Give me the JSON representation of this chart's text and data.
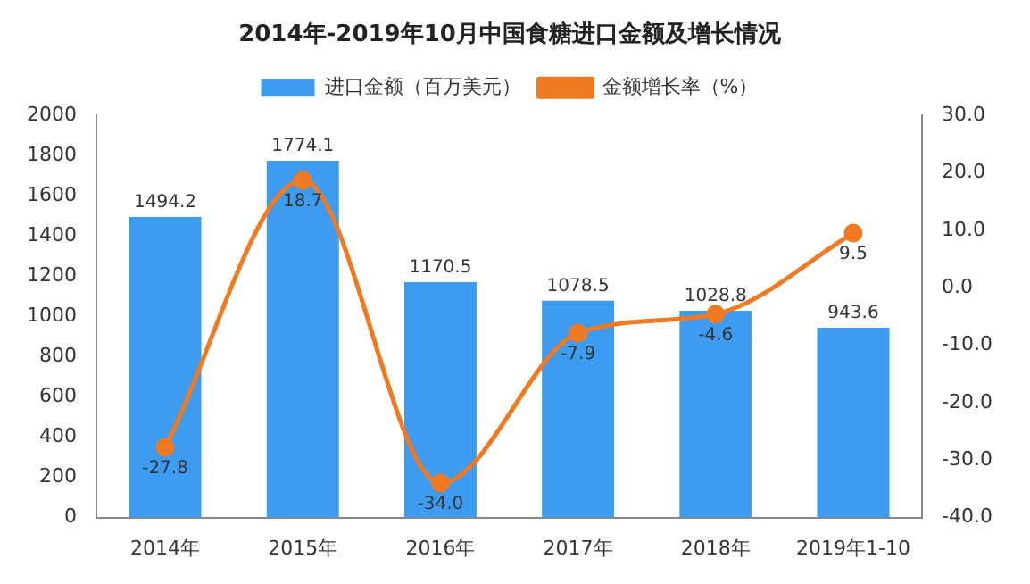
{
  "chart_data": {
    "type": "bar",
    "title": "2014年-2019年10月中国食糖进口金额及增长情况",
    "categories": [
      "2014年",
      "2015年",
      "2016年",
      "2017年",
      "2018年",
      "2019年1-10"
    ],
    "series": [
      {
        "name": "进口金额（百万美元）",
        "color": "#3d9cf0",
        "values": [
          1494.2,
          1774.1,
          1170.5,
          1078.5,
          1028.8,
          943.6
        ],
        "value_labels": [
          "1494.2",
          "1774.1",
          "1170.5",
          "1078.5",
          "1028.8",
          "943.6"
        ]
      },
      {
        "name": "金额增长率（%）",
        "type": "line",
        "axis": "y2",
        "color": "#f07a22",
        "values": [
          -27.8,
          18.7,
          -34.0,
          -7.9,
          -4.6,
          9.5
        ],
        "value_labels": [
          "-27.8",
          "18.7",
          "-34.0",
          "-7.9",
          "-4.6",
          "9.5"
        ]
      }
    ],
    "ylim": [
      0,
      2000
    ],
    "yticks": [
      0,
      200,
      400,
      600,
      800,
      1000,
      1200,
      1400,
      1600,
      1800,
      2000
    ],
    "y2lim": [
      -40,
      30
    ],
    "y2ticks": [
      {
        "value": -40,
        "label": "-40.0"
      },
      {
        "value": -30,
        "label": "-30.0"
      },
      {
        "value": -20,
        "label": "-20.0"
      },
      {
        "value": -10,
        "label": "-10.0"
      },
      {
        "value": 0,
        "label": "0.0"
      },
      {
        "value": 10,
        "label": "10.0"
      },
      {
        "value": 20,
        "label": "20.0"
      },
      {
        "value": 30,
        "label": "30.0"
      }
    ],
    "legend": "top",
    "grid": false,
    "marker": "circle",
    "line_style": "solid"
  }
}
